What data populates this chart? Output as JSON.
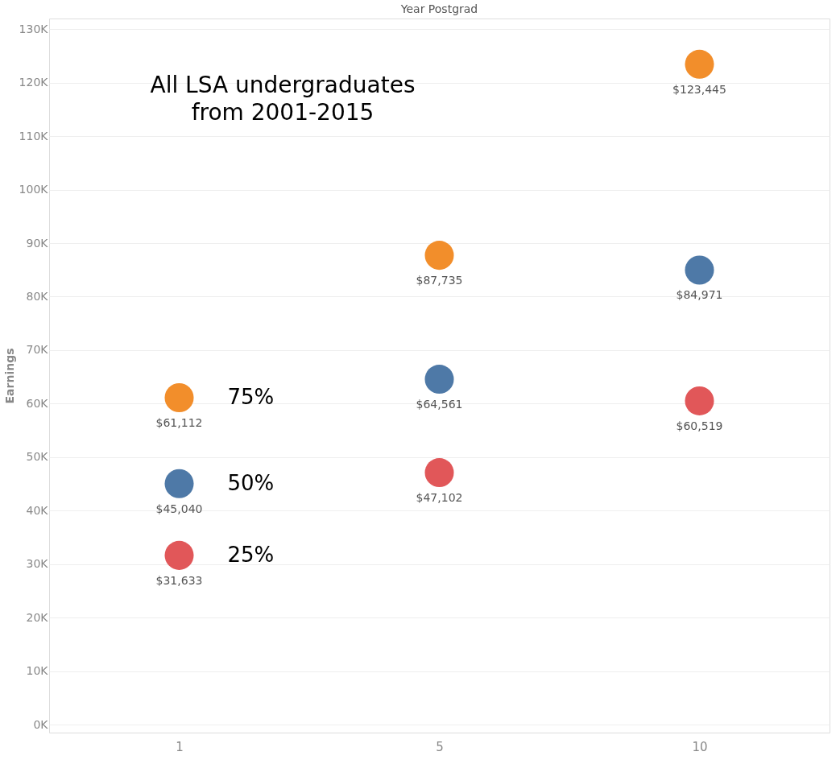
{
  "chart_data": {
    "type": "scatter",
    "xlabel": "Year Postgrad",
    "ylabel": "Earnings",
    "categories": [
      "1",
      "5",
      "10"
    ],
    "series": [
      {
        "name": "75%",
        "color": "#f28e2b",
        "values": [
          61112,
          87735,
          123445
        ],
        "value_labels": [
          "$61,112",
          "$87,735",
          "$123,445"
        ]
      },
      {
        "name": "50%",
        "color": "#4e79a7",
        "values": [
          45040,
          64561,
          84971
        ],
        "value_labels": [
          "$45,040",
          "$64,561",
          "$84,971"
        ]
      },
      {
        "name": "25%",
        "color": "#e15759",
        "values": [
          31633,
          47102,
          60519
        ],
        "value_labels": [
          "$31,633",
          "$47,102",
          "$60,519"
        ]
      }
    ],
    "ylim": [
      -1500,
      132000
    ],
    "yticks": [
      {
        "value": 0,
        "label": "0K"
      },
      {
        "value": 10000,
        "label": "10K"
      },
      {
        "value": 20000,
        "label": "20K"
      },
      {
        "value": 30000,
        "label": "30K"
      },
      {
        "value": 40000,
        "label": "40K"
      },
      {
        "value": 50000,
        "label": "50K"
      },
      {
        "value": 60000,
        "label": "60K"
      },
      {
        "value": 70000,
        "label": "70K"
      },
      {
        "value": 80000,
        "label": "80K"
      },
      {
        "value": 90000,
        "label": "90K"
      },
      {
        "value": 100000,
        "label": "100K"
      },
      {
        "value": 110000,
        "label": "110K"
      },
      {
        "value": 120000,
        "label": "120K"
      },
      {
        "value": 130000,
        "label": "130K"
      }
    ],
    "annotations": [
      "All LSA undergraduates\nfrom 2001-2015"
    ],
    "grid": "y",
    "legend": false,
    "marker": "circle"
  }
}
